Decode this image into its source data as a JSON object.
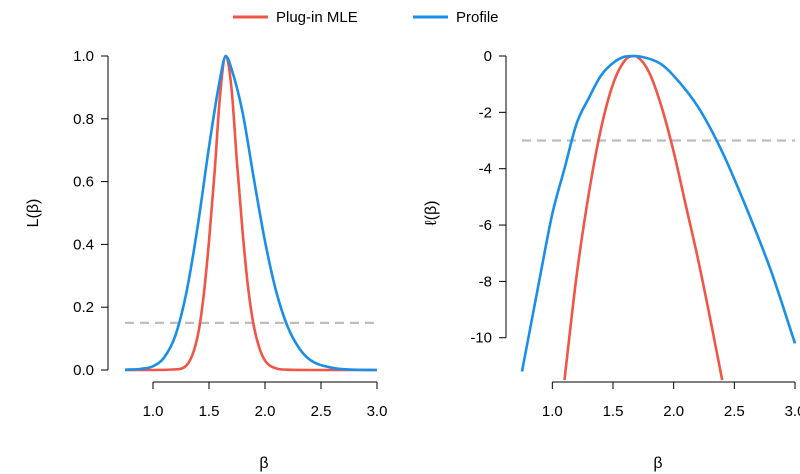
{
  "legend": {
    "position": "top-center",
    "entries": [
      {
        "label": "Plug-in MLE",
        "color": "#F05545"
      },
      {
        "label": "Profile",
        "color": "#1A8FE8"
      }
    ]
  },
  "reference_line_color": "#BDBDBD",
  "chart_data": [
    {
      "type": "line",
      "ylabel": "L(β)",
      "xlabel": "β",
      "xlim": [
        0.75,
        3.0
      ],
      "ylim": [
        0.0,
        1.0
      ],
      "x_ticks": [
        1.0,
        1.5,
        2.0,
        2.5,
        3.0
      ],
      "x_tick_labels": [
        "1.0",
        "1.5",
        "2.0",
        "2.5",
        "3.0"
      ],
      "y_ticks": [
        0.0,
        0.2,
        0.4,
        0.6,
        0.8,
        1.0
      ],
      "y_tick_labels": [
        "0.0",
        "0.2",
        "0.4",
        "0.6",
        "0.8",
        "1.0"
      ],
      "reference_line": {
        "y": 0.15,
        "style": "dashed"
      },
      "grid": false,
      "series": [
        {
          "name": "Plug-in MLE",
          "color": "#F05545",
          "x": [
            0.75,
            1.0,
            1.2,
            1.3,
            1.4,
            1.45,
            1.5,
            1.55,
            1.6,
            1.65,
            1.7,
            1.75,
            1.8,
            1.85,
            1.9,
            1.95,
            2.0,
            2.1,
            2.2,
            2.4,
            3.0
          ],
          "y": [
            0.0,
            0.0,
            0.002,
            0.015,
            0.11,
            0.23,
            0.41,
            0.63,
            0.88,
            1.0,
            0.9,
            0.66,
            0.44,
            0.26,
            0.14,
            0.07,
            0.03,
            0.005,
            0.001,
            0.0,
            0.0
          ]
        },
        {
          "name": "Profile",
          "color": "#1A8FE8",
          "x": [
            0.75,
            0.9,
            1.0,
            1.1,
            1.2,
            1.3,
            1.4,
            1.5,
            1.6,
            1.65,
            1.7,
            1.8,
            1.9,
            2.0,
            2.1,
            2.2,
            2.3,
            2.4,
            2.6,
            2.8,
            3.0
          ],
          "y": [
            0.001,
            0.004,
            0.012,
            0.04,
            0.11,
            0.25,
            0.46,
            0.71,
            0.93,
            1.0,
            0.96,
            0.82,
            0.61,
            0.41,
            0.25,
            0.14,
            0.072,
            0.033,
            0.007,
            0.001,
            0.0
          ]
        }
      ]
    },
    {
      "type": "line",
      "ylabel": "ℓ(β)",
      "xlabel": "β",
      "xlim": [
        0.75,
        3.0
      ],
      "ylim": [
        -11.5,
        0.0
      ],
      "x_ticks": [
        1.0,
        1.5,
        2.0,
        2.5,
        3.0
      ],
      "x_tick_labels": [
        "1.0",
        "1.5",
        "2.0",
        "2.5",
        "3.0"
      ],
      "y_ticks": [
        0,
        -2,
        -4,
        -6,
        -8,
        -10
      ],
      "y_tick_labels": [
        "0",
        "-2",
        "-4",
        "-6",
        "-8",
        "-10"
      ],
      "reference_line": {
        "y": -3.0,
        "style": "dashed"
      },
      "grid": false,
      "series": [
        {
          "name": "Plug-in MLE",
          "color": "#F05545",
          "x": [
            1.1,
            1.2,
            1.3,
            1.4,
            1.5,
            1.6,
            1.67,
            1.7,
            1.8,
            1.9,
            2.0,
            2.1,
            2.2,
            2.3,
            2.4
          ],
          "y": [
            -11.5,
            -7.8,
            -4.9,
            -2.6,
            -1.0,
            -0.15,
            0.0,
            -0.03,
            -0.6,
            -1.8,
            -3.4,
            -5.3,
            -7.2,
            -9.3,
            -11.5
          ]
        },
        {
          "name": "Profile",
          "color": "#1A8FE8",
          "x": [
            0.75,
            0.9,
            1.0,
            1.1,
            1.2,
            1.3,
            1.4,
            1.5,
            1.6,
            1.67,
            1.8,
            1.9,
            2.0,
            2.2,
            2.4,
            2.6,
            2.8,
            3.0
          ],
          "y": [
            -11.2,
            -7.8,
            -5.6,
            -4.0,
            -2.4,
            -1.5,
            -0.7,
            -0.25,
            -0.02,
            0.0,
            -0.1,
            -0.3,
            -0.7,
            -1.8,
            -3.4,
            -5.4,
            -7.6,
            -10.2
          ]
        }
      ]
    }
  ]
}
